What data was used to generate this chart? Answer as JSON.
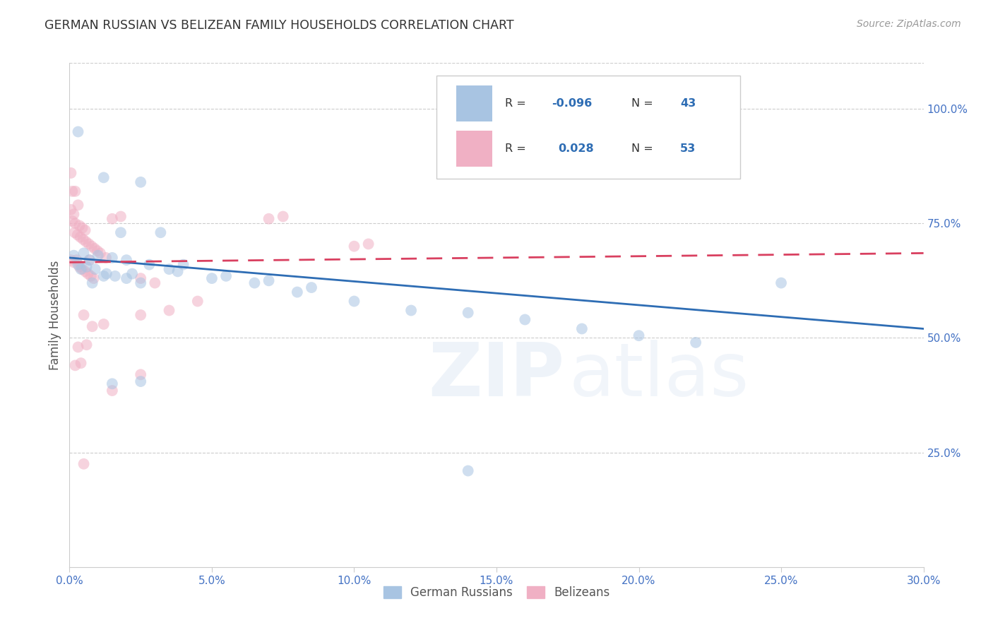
{
  "title": "GERMAN RUSSIAN VS BELIZEAN FAMILY HOUSEHOLDS CORRELATION CHART",
  "source": "Source: ZipAtlas.com",
  "ylabel": "Family Households",
  "x_tick_labels": [
    "0.0%",
    "5.0%",
    "10.0%",
    "15.0%",
    "20.0%",
    "25.0%",
    "30.0%"
  ],
  "x_tick_values": [
    0.0,
    5.0,
    10.0,
    15.0,
    20.0,
    25.0,
    30.0
  ],
  "y_tick_labels": [
    "25.0%",
    "50.0%",
    "75.0%",
    "100.0%"
  ],
  "y_tick_values": [
    25.0,
    50.0,
    75.0,
    100.0
  ],
  "xlim": [
    0.0,
    30.0
  ],
  "ylim": [
    0.0,
    110.0
  ],
  "legend_R_blue": "-0.096",
  "legend_R_pink": "0.028",
  "legend_N_blue": "43",
  "legend_N_pink": "53",
  "blue_color": "#a8c4e2",
  "pink_color": "#f0b0c4",
  "blue_line_color": "#2e6db4",
  "pink_line_color": "#d94060",
  "legend_value_color": "#2e6db4",
  "axis_tick_color": "#4472c4",
  "title_color": "#333333",
  "source_color": "#999999",
  "grid_color": "#cccccc",
  "ylabel_color": "#555555",
  "legend_label_color": "#555555",
  "background_color": "#ffffff",
  "watermark_color": "#c8d8ee",
  "watermark_alpha": 0.3,
  "scatter_size": 130,
  "scatter_alpha": 0.55,
  "trend_linewidth": 2.0,
  "blue_scatter_x": [
    0.3,
    1.2,
    2.5,
    0.15,
    1.8,
    3.2,
    0.5,
    0.7,
    1.0,
    1.5,
    2.0,
    2.8,
    0.3,
    0.6,
    0.9,
    1.3,
    2.2,
    3.5,
    5.0,
    5.5,
    6.5,
    7.0,
    8.0,
    8.5,
    10.0,
    12.0,
    14.0,
    16.0,
    18.0,
    20.0,
    22.0,
    25.0,
    1.5,
    2.5,
    4.0,
    2.0,
    3.8,
    1.2,
    0.4,
    0.8,
    1.6,
    2.5,
    14.0
  ],
  "blue_scatter_y": [
    95.0,
    85.0,
    84.0,
    68.0,
    73.0,
    73.0,
    68.5,
    67.0,
    68.0,
    67.5,
    67.0,
    66.0,
    66.0,
    65.5,
    65.0,
    64.0,
    64.0,
    65.0,
    63.0,
    63.5,
    62.0,
    62.5,
    60.0,
    61.0,
    58.0,
    56.0,
    55.5,
    54.0,
    52.0,
    50.5,
    49.0,
    62.0,
    40.0,
    40.5,
    66.0,
    63.0,
    64.5,
    63.5,
    65.0,
    62.0,
    63.5,
    62.0,
    21.0
  ],
  "pink_scatter_x": [
    0.05,
    0.1,
    0.2,
    0.3,
    0.05,
    0.15,
    0.1,
    0.2,
    0.35,
    0.45,
    0.55,
    0.18,
    0.28,
    0.38,
    0.48,
    0.58,
    0.68,
    0.78,
    0.88,
    0.98,
    1.08,
    1.28,
    0.05,
    0.15,
    0.35,
    0.45,
    0.55,
    0.65,
    0.75,
    0.85,
    1.5,
    1.8,
    7.0,
    7.5,
    10.0,
    10.5,
    2.5,
    3.0,
    0.5,
    0.8,
    2.5,
    4.5,
    0.3,
    0.6,
    0.4,
    0.2,
    1.2,
    1.5,
    2.5,
    3.5,
    0.7,
    0.5,
    0.25
  ],
  "pink_scatter_y": [
    86.0,
    82.0,
    82.0,
    79.0,
    78.0,
    77.0,
    75.5,
    75.0,
    74.5,
    74.0,
    73.5,
    73.0,
    72.5,
    72.0,
    71.5,
    71.0,
    70.5,
    70.0,
    69.5,
    69.0,
    68.5,
    67.5,
    67.0,
    66.5,
    65.5,
    65.0,
    64.5,
    64.0,
    63.5,
    63.0,
    76.0,
    76.5,
    76.0,
    76.5,
    70.0,
    70.5,
    63.0,
    62.0,
    55.0,
    52.5,
    55.0,
    58.0,
    48.0,
    48.5,
    44.5,
    44.0,
    53.0,
    38.5,
    42.0,
    56.0,
    67.0,
    22.5,
    67.0
  ],
  "blue_trend": [
    0.0,
    67.5,
    30.0,
    52.0
  ],
  "pink_trend": [
    0.0,
    66.5,
    30.0,
    68.5
  ]
}
